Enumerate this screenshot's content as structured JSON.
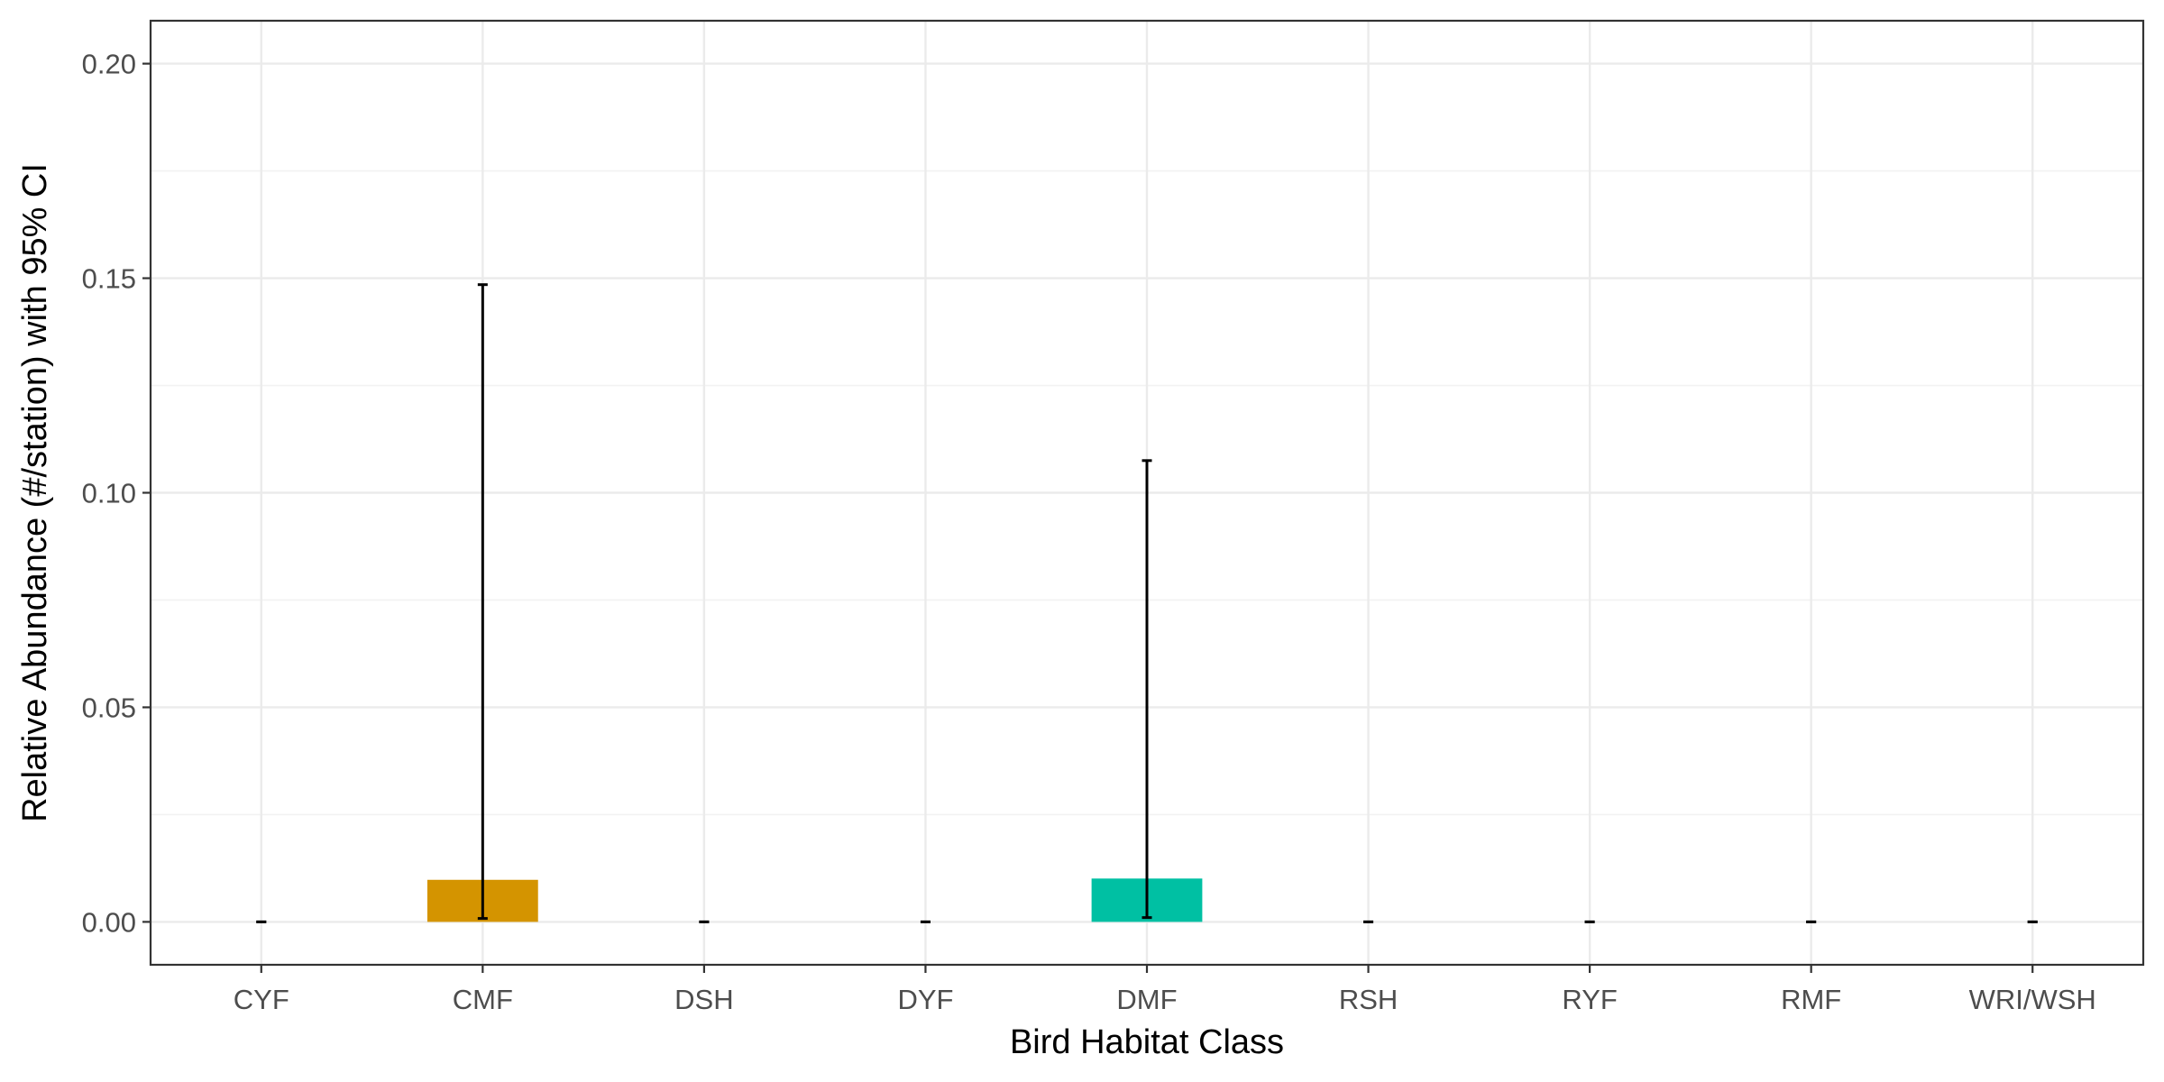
{
  "chart_data": {
    "type": "bar",
    "xlabel": "Bird Habitat Class",
    "ylabel": "Relative Abundance (#/station) with 95% CI",
    "categories": [
      "CYF",
      "CMF",
      "DSH",
      "DYF",
      "DMF",
      "RSH",
      "RYF",
      "RMF",
      "WRI/WSH"
    ],
    "values": [
      0,
      0.0098,
      0,
      0,
      0.0101,
      0,
      0,
      0,
      0
    ],
    "ci_lower": [
      0,
      0.0008,
      0,
      0,
      0.001,
      0,
      0,
      0,
      0
    ],
    "ci_upper": [
      0,
      0.1485,
      0,
      0,
      0.1075,
      0,
      0,
      0,
      0
    ],
    "bar_colors": [
      "#E69F00",
      "#D49400",
      "#56B4E9",
      "#009E73",
      "#00C0A3",
      "#F0E442",
      "#0072B2",
      "#D55E00",
      "#CC79A7"
    ],
    "yticks": [
      0,
      0.05,
      0.1,
      0.15,
      0.2
    ],
    "ytick_labels": [
      "0.00",
      "0.05",
      "0.10",
      "0.15",
      "0.20"
    ],
    "ylim": [
      -0.01,
      0.21
    ],
    "grid": true,
    "legend": "none"
  }
}
